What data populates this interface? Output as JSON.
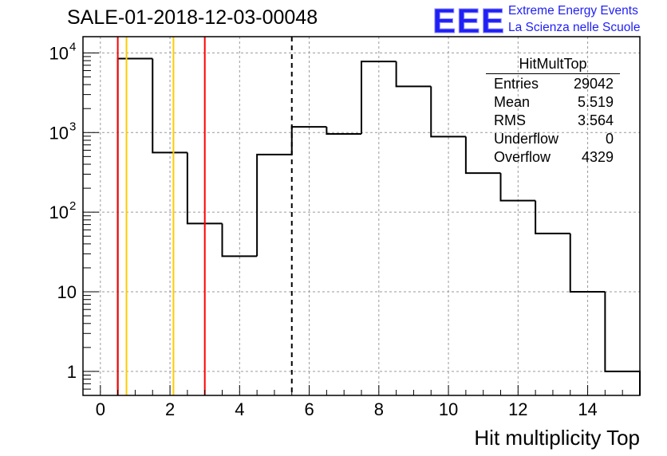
{
  "header": {
    "title": "SALE-01-2018-12-03-00048",
    "logo_text": "EEE",
    "logo_line1": "Extreme Energy Events",
    "logo_line2": "La Scienza nelle Scuole"
  },
  "stats_box": {
    "title": "HitMultTop",
    "rows": [
      {
        "label": "Entries",
        "value": "29042"
      },
      {
        "label": "Mean",
        "value": "5.519"
      },
      {
        "label": "RMS",
        "value": "3.564"
      },
      {
        "label": "Underflow",
        "value": "0"
      },
      {
        "label": "Overflow",
        "value": "4329"
      }
    ]
  },
  "chart_data": {
    "type": "histogram",
    "title": "SALE-01-2018-12-03-00048",
    "xlabel": "Hit multiplicity Top",
    "ylabel": "",
    "xlim": [
      -0.5,
      15.5
    ],
    "ylim": [
      0.5,
      16000
    ],
    "yscale": "log",
    "grid": true,
    "bins": [
      {
        "low": 0.5,
        "high": 1.5,
        "count": 8500
      },
      {
        "low": 1.5,
        "high": 2.5,
        "count": 560
      },
      {
        "low": 2.5,
        "high": 3.5,
        "count": 72
      },
      {
        "low": 3.5,
        "high": 4.5,
        "count": 28
      },
      {
        "low": 4.5,
        "high": 5.5,
        "count": 530
      },
      {
        "low": 5.5,
        "high": 6.5,
        "count": 1180
      },
      {
        "low": 6.5,
        "high": 7.5,
        "count": 960
      },
      {
        "low": 7.5,
        "high": 8.5,
        "count": 7800
      },
      {
        "low": 8.5,
        "high": 9.5,
        "count": 3800
      },
      {
        "low": 9.5,
        "high": 10.5,
        "count": 890
      },
      {
        "low": 10.5,
        "high": 11.5,
        "count": 310
      },
      {
        "low": 11.5,
        "high": 12.5,
        "count": 140
      },
      {
        "low": 12.5,
        "high": 13.5,
        "count": 54
      },
      {
        "low": 13.5,
        "high": 14.5,
        "count": 10
      },
      {
        "low": 14.5,
        "high": 15.5,
        "count": 1
      }
    ],
    "x_ticks": [
      0,
      2,
      4,
      6,
      8,
      10,
      12,
      14
    ],
    "x_tick_labels": [
      "0",
      "2",
      "4",
      "6",
      "8",
      "10",
      "12",
      "14"
    ],
    "y_ticks": [
      1,
      10,
      100,
      1000,
      10000
    ],
    "y_tick_labels": [
      {
        "base": "1",
        "exp": ""
      },
      {
        "base": "10",
        "exp": ""
      },
      {
        "base": "10",
        "exp": "2"
      },
      {
        "base": "10",
        "exp": "3"
      },
      {
        "base": "10",
        "exp": "4"
      }
    ],
    "vertical_lines": [
      {
        "x": 0.5,
        "color": "#ff0000",
        "style": "solid"
      },
      {
        "x": 0.75,
        "color": "#ffcc00",
        "style": "solid"
      },
      {
        "x": 2.1,
        "color": "#ffcc00",
        "style": "solid"
      },
      {
        "x": 3.0,
        "color": "#ff0000",
        "style": "solid"
      },
      {
        "x": 5.5,
        "color": "#000000",
        "style": "dashed"
      }
    ]
  }
}
